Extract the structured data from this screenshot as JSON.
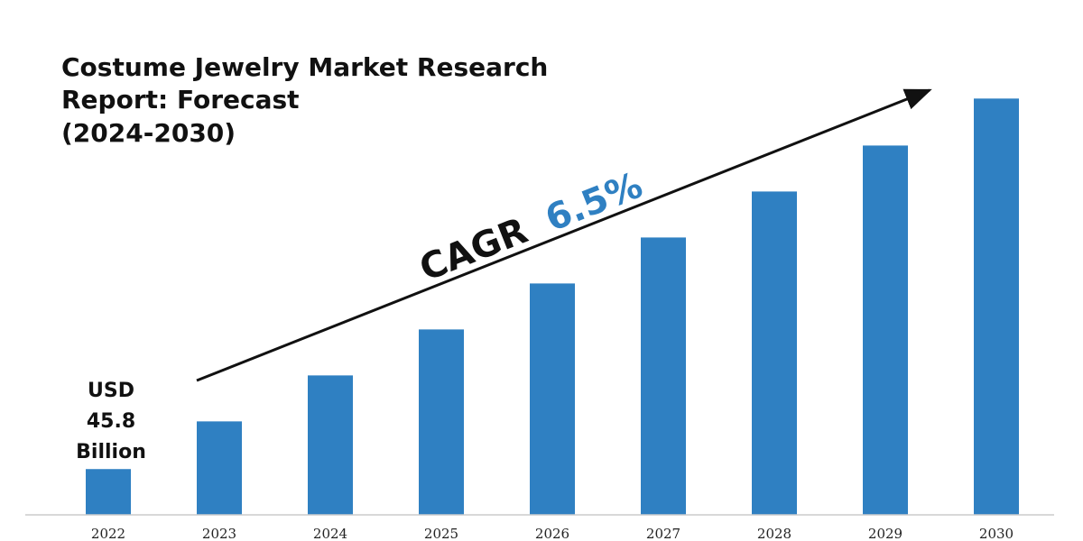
{
  "chart_data": {
    "type": "bar",
    "title_lines": [
      "Costume Jewelry Market Research",
      "Report: Forecast",
      "(2024-2030)"
    ],
    "categories": [
      "2022",
      "2023",
      "2024",
      "2025",
      "2026",
      "2027",
      "2028",
      "2029",
      "2030"
    ],
    "values": [
      45.8,
      93.5,
      139.5,
      185.5,
      231.5,
      277.5,
      323.5,
      369.5,
      416.5
    ],
    "ylim": [
      0,
      470
    ],
    "grid": false,
    "bar_color": "#2f80c2",
    "start_label": [
      "USD",
      "45.8",
      "Billion"
    ],
    "cagr": {
      "label": "CAGR",
      "value": "6.5%",
      "label_color": "#111111",
      "value_color": "#2f80c2"
    }
  }
}
